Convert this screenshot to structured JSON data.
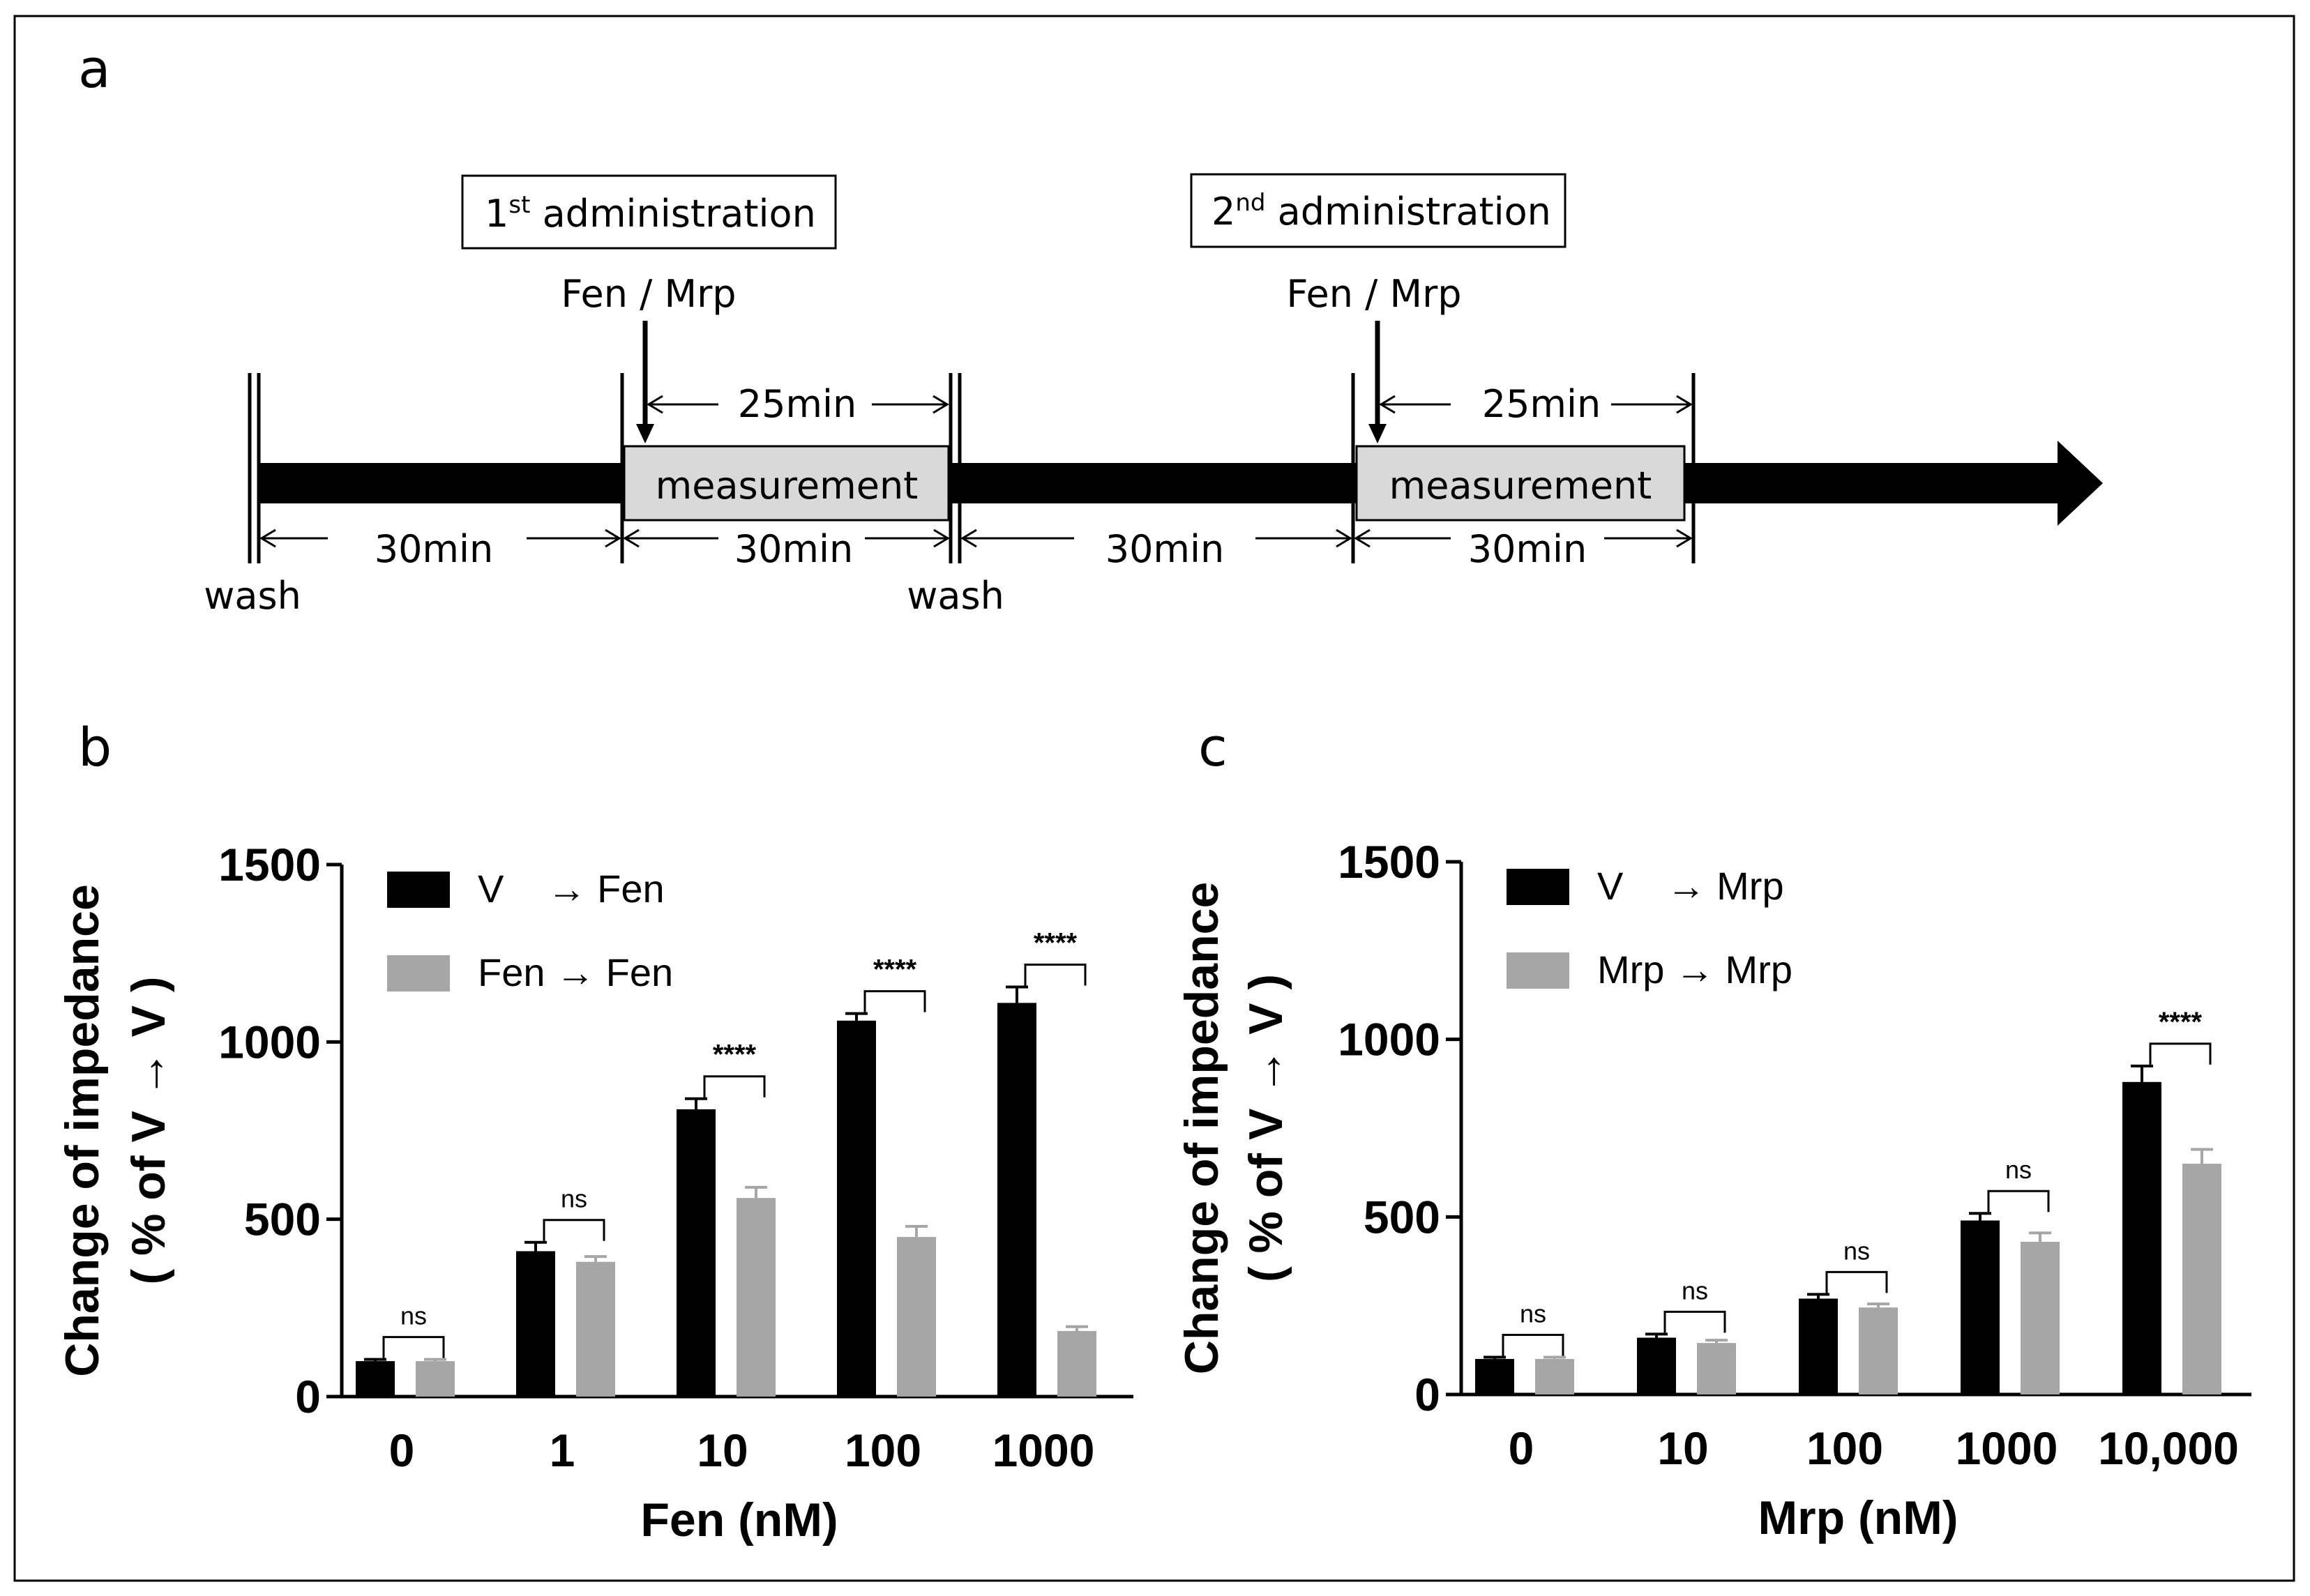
{
  "panel_labels": {
    "a": "a",
    "b": "b",
    "c": "c"
  },
  "timeline": {
    "administration_1": {
      "number": "1",
      "suffix": "st",
      "text": " administration"
    },
    "administration_2": {
      "number": "2",
      "suffix": "nd",
      "text": " administration"
    },
    "drug_1": "Fen / Mrp",
    "drug_2": "Fen / Mrp",
    "measurement_1": "measurement",
    "measurement_2": "measurement",
    "interval_25_1": "25min",
    "interval_25_2": "25min",
    "interval_30_a": "30min",
    "interval_30_b": "30min",
    "interval_30_c": "30min",
    "interval_30_d": "30min",
    "wash_1": "wash",
    "wash_2": "wash"
  },
  "colors": {
    "black_series": "#000000",
    "gray_series": "#a6a6a6",
    "box_fill": "#d9d9d9"
  },
  "chart_data": [
    {
      "id": "b",
      "type": "bar",
      "categories": [
        "0",
        "1",
        "10",
        "100",
        "1000"
      ],
      "series": [
        {
          "name": "V    → Fen",
          "color": "#000000",
          "values": [
            100,
            410,
            810,
            1060,
            1110
          ],
          "errors": [
            5,
            25,
            30,
            20,
            45
          ]
        },
        {
          "name": "Fen → Fen",
          "color": "#a6a6a6",
          "values": [
            100,
            380,
            560,
            450,
            185
          ],
          "errors": [
            5,
            15,
            30,
            30,
            12
          ]
        }
      ],
      "significance": [
        "ns",
        "ns",
        "****",
        "****",
        "****"
      ],
      "xlabel": "Fen (nM)",
      "ylabel_line1": "Change of impedance",
      "ylabel_line2": "( % of V → V )",
      "ylim": [
        0,
        1500
      ],
      "yticks": [
        0,
        500,
        1000,
        1500
      ]
    },
    {
      "id": "c",
      "type": "bar",
      "categories": [
        "0",
        "10",
        "100",
        "1000",
        "10,000"
      ],
      "series": [
        {
          "name": "V    → Mrp",
          "color": "#000000",
          "values": [
            100,
            160,
            270,
            490,
            880
          ],
          "errors": [
            5,
            10,
            12,
            20,
            45
          ]
        },
        {
          "name": "Mrp → Mrp",
          "color": "#a6a6a6",
          "values": [
            100,
            145,
            245,
            430,
            650
          ],
          "errors": [
            5,
            8,
            10,
            25,
            40
          ]
        }
      ],
      "significance": [
        "ns",
        "ns",
        "ns",
        "ns",
        "****"
      ],
      "xlabel": "Mrp (nM)",
      "ylabel_line1": "Change of impedance",
      "ylabel_line2": "( % of V → V )",
      "ylim": [
        0,
        1500
      ],
      "yticks": [
        0,
        500,
        1000,
        1500
      ]
    }
  ]
}
